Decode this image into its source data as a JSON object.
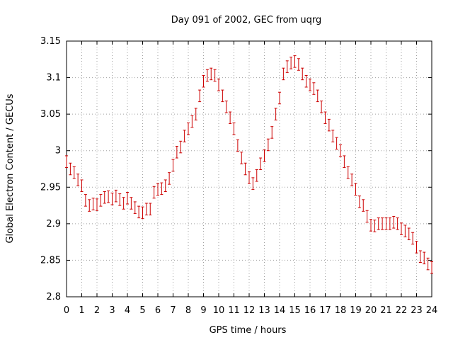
{
  "chart_data": {
    "type": "scatter",
    "title": "Day 091 of 2002, GEC from uqrg",
    "xlabel": "GPS time / hours",
    "ylabel": "Global Electron Content / GECUs",
    "xlim": [
      0,
      24
    ],
    "ylim": [
      2.8,
      3.15
    ],
    "x_ticks": [
      "0",
      "1",
      "2",
      "3",
      "4",
      "5",
      "6",
      "7",
      "8",
      "9",
      "10",
      "11",
      "12",
      "13",
      "14",
      "15",
      "16",
      "17",
      "18",
      "19",
      "20",
      "21",
      "22",
      "23",
      "24"
    ],
    "y_ticks": [
      "2.8",
      "2.85",
      "2.9",
      "2.95",
      "3",
      "3.05",
      "3.1",
      "3.15"
    ],
    "grid": true,
    "error_bars": true,
    "marker_color": "#cc0000",
    "grid_color": "#a0a0a0",
    "x": [
      0,
      0.25,
      0.5,
      0.75,
      1,
      1.25,
      1.5,
      1.75,
      2,
      2.25,
      2.5,
      2.75,
      3,
      3.25,
      3.5,
      3.75,
      4,
      4.25,
      4.5,
      4.75,
      5,
      5.25,
      5.5,
      5.75,
      6,
      6.25,
      6.5,
      6.75,
      7,
      7.25,
      7.5,
      7.75,
      8,
      8.25,
      8.5,
      8.75,
      9,
      9.25,
      9.5,
      9.75,
      10,
      10.25,
      10.5,
      10.75,
      11,
      11.25,
      11.5,
      11.75,
      12,
      12.25,
      12.5,
      12.75,
      13,
      13.25,
      13.5,
      13.75,
      14,
      14.25,
      14.5,
      14.75,
      15,
      15.25,
      15.5,
      15.75,
      16,
      16.25,
      16.5,
      16.75,
      17,
      17.25,
      17.5,
      17.75,
      18,
      18.25,
      18.5,
      18.75,
      19,
      19.25,
      19.5,
      19.75,
      20,
      20.25,
      20.5,
      20.75,
      21,
      21.25,
      21.5,
      21.75,
      22,
      22.25,
      22.5,
      22.75,
      23,
      23.25,
      23.5,
      23.75,
      24
    ],
    "y": [
      2.985,
      2.975,
      2.97,
      2.96,
      2.952,
      2.932,
      2.925,
      2.927,
      2.926,
      2.932,
      2.936,
      2.937,
      2.934,
      2.938,
      2.933,
      2.928,
      2.935,
      2.928,
      2.922,
      2.916,
      2.915,
      2.92,
      2.92,
      2.943,
      2.947,
      2.948,
      2.952,
      2.962,
      2.98,
      2.998,
      3.005,
      3.02,
      3.03,
      3.04,
      3.05,
      3.075,
      3.095,
      3.103,
      3.105,
      3.103,
      3.09,
      3.075,
      3.06,
      3.045,
      3.03,
      3.007,
      2.99,
      2.975,
      2.963,
      2.955,
      2.966,
      2.982,
      2.993,
      3.008,
      3.025,
      3.05,
      3.072,
      3.105,
      3.115,
      3.12,
      3.122,
      3.118,
      3.105,
      3.095,
      3.09,
      3.085,
      3.075,
      3.06,
      3.045,
      3.035,
      3.02,
      3.01,
      3.0,
      2.985,
      2.97,
      2.96,
      2.947,
      2.93,
      2.925,
      2.91,
      2.898,
      2.897,
      2.9,
      2.9,
      2.9,
      2.9,
      2.902,
      2.9,
      2.893,
      2.89,
      2.886,
      2.88,
      2.868,
      2.855,
      2.853,
      2.845,
      2.84
    ],
    "error": 0.008
  }
}
